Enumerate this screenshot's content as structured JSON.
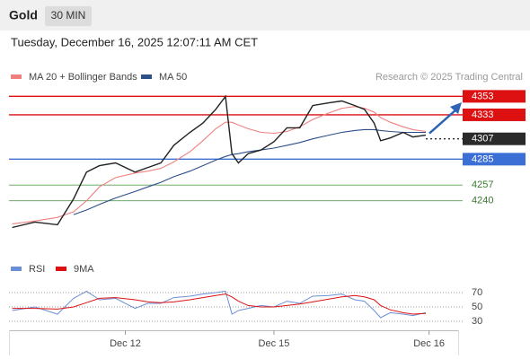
{
  "header": {
    "symbol": "Gold",
    "timeframe": "30 MIN",
    "datetime": "Tuesday, December 16, 2025 12:07:11 AM CET"
  },
  "chart_data": [
    {
      "type": "line",
      "credit": "Research © 2025 Trading Central",
      "x": [
        0.5,
        4,
        7.5,
        10,
        12,
        14,
        16.5,
        19.5,
        21.5,
        23.5,
        25.5,
        28,
        30,
        32,
        33.5,
        34.5,
        35.5,
        37,
        39,
        41,
        43,
        45,
        47,
        49.5,
        51.5,
        53.5,
        55,
        56.5,
        57.5,
        59,
        61,
        62.5,
        64.5
      ],
      "xlim": [
        0,
        69.5
      ],
      "ylim": [
        4195,
        4365
      ],
      "series": [
        {
          "name": "MA 20 + Bollinger Bands",
          "color": "#f08080",
          "values": [
            4215,
            4218,
            4222,
            4228,
            4240,
            4255,
            4265,
            4270,
            4272,
            4275,
            4282,
            4293,
            4305,
            4318,
            4325,
            4325,
            4322,
            4318,
            4314,
            4313,
            4315,
            4320,
            4328,
            4335,
            4340,
            4342,
            4340,
            4336,
            4330,
            4325,
            4320,
            4317,
            4315
          ]
        },
        {
          "name": "MA 50",
          "color": "#2d4f8a",
          "values": [
            null,
            null,
            null,
            4225,
            4230,
            4236,
            4243,
            4250,
            4255,
            4260,
            4266,
            4272,
            4278,
            4284,
            4288,
            4290,
            4291,
            4293,
            4295,
            4297,
            4300,
            4303,
            4307,
            4311,
            4314,
            4316,
            4317,
            4317,
            4316,
            4315,
            4314,
            4314,
            4314
          ]
        },
        {
          "color": "#222222",
          "values": [
            4211,
            4217,
            4214,
            4242,
            4271,
            4278,
            4281,
            4271,
            4276,
            4281,
            4300,
            4314,
            4324,
            4339,
            4353,
            4291,
            4281,
            4291,
            4295,
            4304,
            4319,
            4319,
            4343,
            4346,
            4348,
            4343,
            4339,
            4324,
            4305,
            4308,
            4314,
            4309,
            4311
          ]
        }
      ],
      "levels": [
        {
          "value": 4353,
          "color": "#dd1111"
        },
        {
          "value": 4333,
          "color": "#dd1111"
        },
        {
          "value": 4307,
          "color": "#2a2a2a"
        },
        {
          "value": 4285,
          "color": "#3b6fd6"
        },
        {
          "value": 4257,
          "color": "#5aa050"
        },
        {
          "value": 4240,
          "color": "#5aa050"
        }
      ]
    },
    {
      "type": "line",
      "ylim": [
        20,
        100
      ],
      "yticks": [
        70,
        50,
        30
      ],
      "xticks": [
        {
          "value": 18,
          "label": "Dec 12"
        },
        {
          "value": 41,
          "label": "Dec 15"
        },
        {
          "value": 65,
          "label": "Dec 16"
        }
      ],
      "series": [
        {
          "name": "RSI",
          "color": "#6b8fd6",
          "values": [
            45,
            50,
            40,
            62,
            72,
            60,
            62,
            48,
            55,
            55,
            63,
            65,
            68,
            70,
            72,
            40,
            45,
            48,
            52,
            50,
            58,
            55,
            65,
            66,
            68,
            60,
            58,
            45,
            35,
            42,
            40,
            38,
            42
          ]
        },
        {
          "name": "9MA",
          "color": "#dd1111",
          "values": [
            48,
            48,
            47,
            50,
            56,
            62,
            63,
            60,
            57,
            56,
            57,
            60,
            63,
            66,
            68,
            64,
            58,
            52,
            50,
            50,
            52,
            54,
            57,
            61,
            64,
            66,
            64,
            60,
            52,
            46,
            42,
            40,
            41
          ]
        }
      ]
    }
  ]
}
